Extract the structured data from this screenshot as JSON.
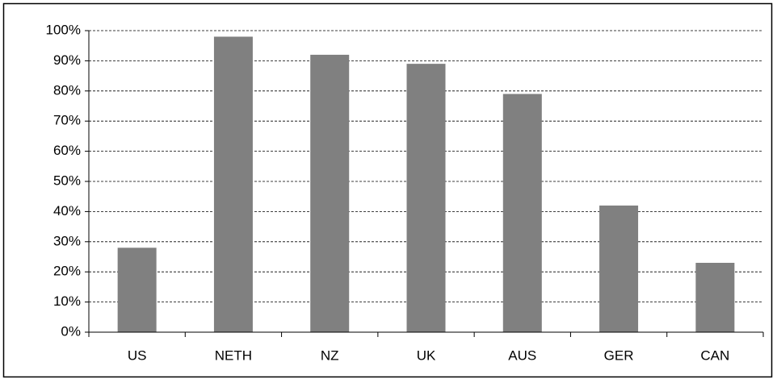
{
  "chart_data": {
    "type": "bar",
    "categories": [
      "US",
      "NETH",
      "NZ",
      "UK",
      "AUS",
      "GER",
      "CAN"
    ],
    "values": [
      28,
      98,
      92,
      89,
      79,
      42,
      23
    ],
    "color": "#808080",
    "ylim": [
      0,
      100
    ],
    "yticks": [
      {
        "value": 0,
        "label": "0%"
      },
      {
        "value": 10,
        "label": "10%"
      },
      {
        "value": 20,
        "label": "20%"
      },
      {
        "value": 30,
        "label": "30%"
      },
      {
        "value": 40,
        "label": "40%"
      },
      {
        "value": 50,
        "label": "50%"
      },
      {
        "value": 60,
        "label": "60%"
      },
      {
        "value": 70,
        "label": "70%"
      },
      {
        "value": 80,
        "label": "80%"
      },
      {
        "value": 90,
        "label": "90%"
      },
      {
        "value": 100,
        "label": "100%"
      }
    ],
    "grid": true
  }
}
